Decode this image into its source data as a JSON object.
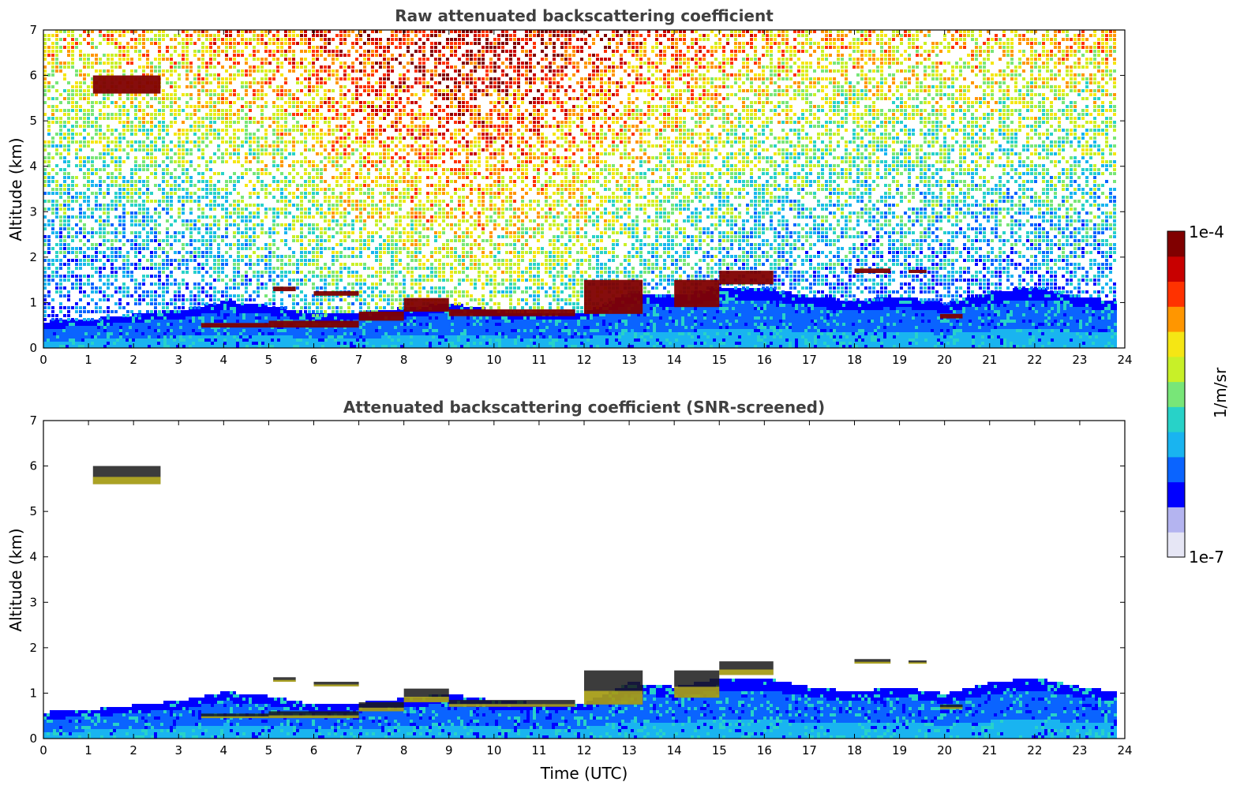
{
  "chart_data": [
    {
      "type": "heatmap",
      "title": "Raw attenuated backscattering coefficient",
      "xlabel": "",
      "ylabel": "Altitude (km)",
      "xlim": [
        0,
        24
      ],
      "ylim": [
        0,
        7
      ],
      "xticks": [
        "0",
        "1",
        "2",
        "3",
        "4",
        "5",
        "6",
        "7",
        "8",
        "9",
        "10",
        "11",
        "12",
        "13",
        "14",
        "15",
        "16",
        "17",
        "18",
        "19",
        "20",
        "21",
        "22",
        "23",
        "24"
      ],
      "yticks": [
        "0",
        "1",
        "2",
        "3",
        "4",
        "5",
        "6",
        "7"
      ],
      "data_end_time": 23.8,
      "boundary_layer_top": {
        "time": [
          0,
          1,
          2,
          3,
          4,
          5,
          6,
          7,
          8,
          9,
          10,
          11,
          12,
          13,
          14,
          15,
          16,
          17,
          18,
          19,
          20,
          21,
          22,
          23,
          23.8
        ],
        "altitude": [
          0.55,
          0.6,
          0.7,
          0.8,
          1.0,
          0.9,
          0.7,
          0.75,
          0.85,
          0.95,
          0.8,
          0.75,
          0.75,
          1.2,
          1.1,
          1.3,
          1.3,
          1.1,
          1.0,
          1.1,
          0.95,
          1.2,
          1.3,
          1.1,
          1.0
        ]
      },
      "cloud_layers": [
        {
          "start": 1.1,
          "end": 2.6,
          "base": 5.6,
          "top": 6.0
        },
        {
          "start": 5.1,
          "end": 5.6,
          "base": 1.25,
          "top": 1.35
        },
        {
          "start": 6.0,
          "end": 7.0,
          "base": 1.15,
          "top": 1.25
        },
        {
          "start": 3.5,
          "end": 5.0,
          "base": 0.45,
          "top": 0.55
        },
        {
          "start": 5.0,
          "end": 7.0,
          "base": 0.45,
          "top": 0.6
        },
        {
          "start": 7.0,
          "end": 8.0,
          "base": 0.6,
          "top": 0.8
        },
        {
          "start": 8.0,
          "end": 9.0,
          "base": 0.8,
          "top": 1.1
        },
        {
          "start": 9.0,
          "end": 11.8,
          "base": 0.7,
          "top": 0.85
        },
        {
          "start": 12.0,
          "end": 13.3,
          "base": 0.75,
          "top": 1.5
        },
        {
          "start": 14.0,
          "end": 15.0,
          "base": 0.9,
          "top": 1.5
        },
        {
          "start": 15.0,
          "end": 16.2,
          "base": 1.4,
          "top": 1.7
        },
        {
          "start": 18.0,
          "end": 18.8,
          "base": 1.65,
          "top": 1.75
        },
        {
          "start": 19.2,
          "end": 19.6,
          "base": 1.65,
          "top": 1.72
        },
        {
          "start": 19.9,
          "end": 20.4,
          "base": 0.65,
          "top": 0.75
        }
      ]
    },
    {
      "type": "heatmap",
      "title": "Attenuated backscattering coefficient (SNR-screened)",
      "xlabel": "Time (UTC)",
      "ylabel": "Altitude (km)",
      "xlim": [
        0,
        24
      ],
      "ylim": [
        0,
        7
      ],
      "xticks": [
        "0",
        "1",
        "2",
        "3",
        "4",
        "5",
        "6",
        "7",
        "8",
        "9",
        "10",
        "11",
        "12",
        "13",
        "14",
        "15",
        "16",
        "17",
        "18",
        "19",
        "20",
        "21",
        "22",
        "23",
        "24"
      ],
      "yticks": [
        "0",
        "1",
        "2",
        "3",
        "4",
        "5",
        "6",
        "7"
      ],
      "data_end_time": 23.8,
      "screened": true
    }
  ],
  "colorbar": {
    "label": "1/m/sr",
    "min_label": "1e-7",
    "max_label": "1e-4",
    "scale": "log",
    "colors": [
      "#e6e6f5",
      "#b4b4f0",
      "#0000ff",
      "#0a64ff",
      "#19b4f0",
      "#28d2c8",
      "#78e678",
      "#c8f028",
      "#f5e614",
      "#ff9600",
      "#ff3200",
      "#c80000",
      "#800000"
    ]
  }
}
